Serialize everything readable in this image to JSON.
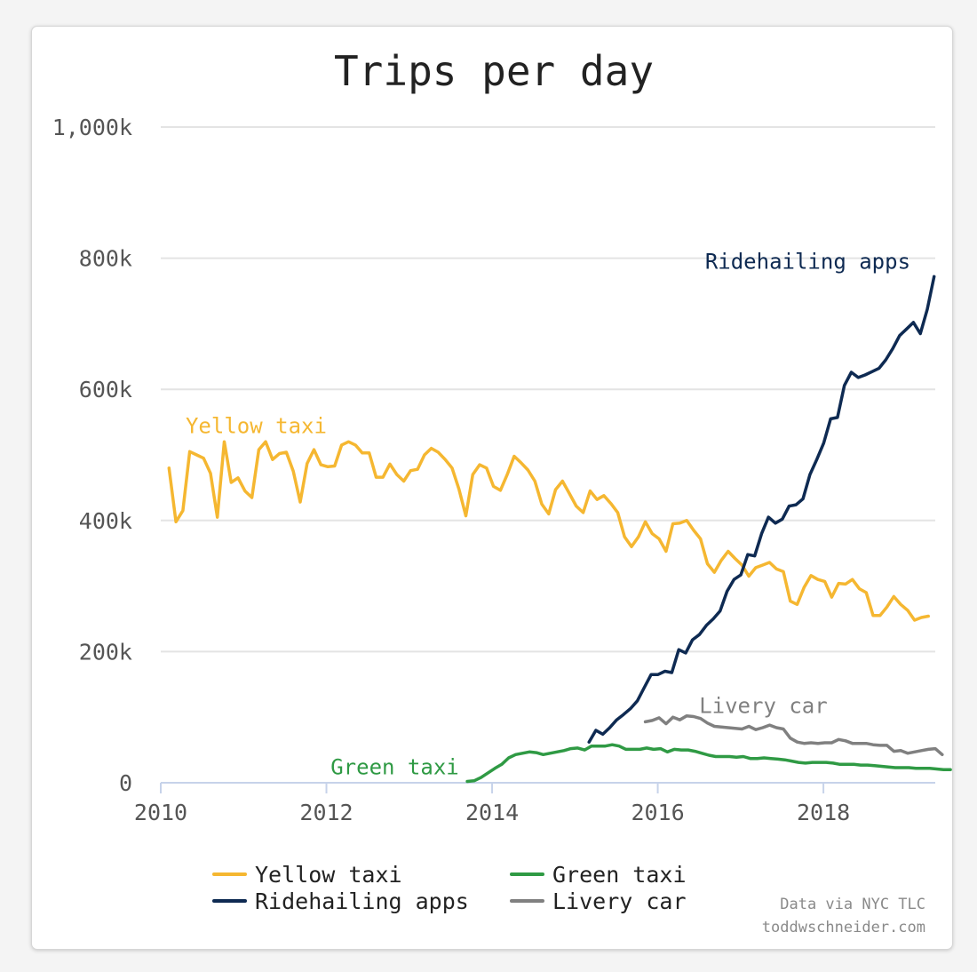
{
  "chart_data": {
    "type": "line",
    "title": "Trips per day",
    "xlabel": "",
    "ylabel": "",
    "xlim": [
      2010,
      2019.35
    ],
    "ylim": [
      0,
      1000000
    ],
    "x_ticks": [
      {
        "value": 2010,
        "label": "2010"
      },
      {
        "value": 2012,
        "label": "2012"
      },
      {
        "value": 2014,
        "label": "2014"
      },
      {
        "value": 2016,
        "label": "2016"
      },
      {
        "value": 2018,
        "label": "2018"
      }
    ],
    "y_ticks": [
      {
        "value": 0,
        "label": "0"
      },
      {
        "value": 200000,
        "label": "200k"
      },
      {
        "value": 400000,
        "label": "400k"
      },
      {
        "value": 600000,
        "label": "600k"
      },
      {
        "value": 800000,
        "label": "800k"
      },
      {
        "value": 1000000,
        "label": "1,000k"
      }
    ],
    "grid": true,
    "legend_position": "bottom",
    "series": [
      {
        "name": "Yellow taxi",
        "color": "#f5b731",
        "label_at": {
          "x": 2010.3,
          "y": 544000
        },
        "start": 2010.1,
        "step": 0.08333,
        "values": [
          480000,
          398000,
          415000,
          505000,
          500000,
          495000,
          472000,
          405000,
          520000,
          458000,
          465000,
          445000,
          435000,
          508000,
          520000,
          493000,
          502000,
          504000,
          475000,
          428000,
          487000,
          508000,
          485000,
          482000,
          483000,
          515000,
          520000,
          515000,
          503000,
          503000,
          466000,
          466000,
          486000,
          470000,
          460000,
          476000,
          478000,
          500000,
          510000,
          504000,
          493000,
          480000,
          448000,
          407000,
          470000,
          485000,
          480000,
          452000,
          446000,
          470000,
          498000,
          488000,
          477000,
          460000,
          425000,
          410000,
          447000,
          460000,
          441000,
          422000,
          412000,
          445000,
          432000,
          438000,
          426000,
          412000,
          375000,
          360000,
          375000,
          398000,
          380000,
          372000,
          353000,
          395000,
          396000,
          400000,
          385000,
          372000,
          334000,
          321000,
          339000,
          353000,
          342000,
          332000,
          315000,
          328000,
          332000,
          336000,
          326000,
          322000,
          277000,
          272000,
          298000,
          316000,
          310000,
          307000,
          283000,
          304000,
          303000,
          310000,
          296000,
          290000,
          255000,
          255000,
          268000,
          284000,
          272000,
          263000,
          248000,
          252000,
          254000
        ]
      },
      {
        "name": "Ridehailing apps",
        "color": "#0e2a52",
        "label_at": {
          "x": 2019.05,
          "y": 795000
        },
        "start": 2015.17,
        "step": 0.08333,
        "values": [
          62000,
          80000,
          74000,
          84000,
          96000,
          104000,
          113000,
          125000,
          145000,
          165000,
          165000,
          170000,
          168000,
          203000,
          198000,
          218000,
          226000,
          240000,
          250000,
          262000,
          292000,
          310000,
          317000,
          348000,
          346000,
          380000,
          405000,
          396000,
          402000,
          422000,
          424000,
          433000,
          470000,
          493000,
          518000,
          555000,
          557000,
          606000,
          626000,
          618000,
          622000,
          627000,
          632000,
          645000,
          662000,
          682000,
          692000,
          702000,
          685000,
          722000,
          772000
        ]
      },
      {
        "name": "Green taxi",
        "color": "#2f9a44",
        "label_at": {
          "x": 2013.6,
          "y": 24000
        },
        "start": 2013.7,
        "step": 0.08333,
        "values": [
          2000,
          3000,
          8000,
          15000,
          22000,
          28000,
          38000,
          43000,
          45000,
          47000,
          46000,
          43000,
          45000,
          47000,
          49000,
          52000,
          53000,
          50000,
          56000,
          56000,
          56000,
          58000,
          56000,
          51000,
          51000,
          51000,
          53000,
          51000,
          52000,
          47000,
          51000,
          50000,
          50000,
          48000,
          45000,
          42000,
          40000,
          40000,
          40000,
          39000,
          40000,
          37000,
          37000,
          38000,
          37000,
          36000,
          35000,
          33000,
          31000,
          30000,
          31000,
          31000,
          31000,
          30000,
          28000,
          28000,
          28000,
          27000,
          27000,
          26000,
          25000,
          24000,
          23000,
          23000,
          23000,
          22000,
          22000,
          22000,
          21000,
          20000,
          20000
        ]
      },
      {
        "name": "Livery car",
        "color": "#808080",
        "label_at": {
          "x": 2016.5,
          "y": 117000
        },
        "start": 2015.85,
        "step": 0.08333,
        "values": [
          93000,
          95000,
          99000,
          90000,
          100000,
          96000,
          102000,
          101000,
          98000,
          91000,
          86000,
          85000,
          84000,
          83000,
          82000,
          86000,
          81000,
          84000,
          88000,
          84000,
          82000,
          68000,
          62000,
          60000,
          61000,
          60000,
          61000,
          61000,
          66000,
          64000,
          60000,
          60000,
          60000,
          58000,
          57000,
          57000,
          48000,
          49000,
          45000,
          47000,
          49000,
          51000,
          52000,
          43000
        ]
      }
    ]
  },
  "footer": {
    "source": "Data via NYC TLC",
    "site": "toddwschneider.com"
  }
}
